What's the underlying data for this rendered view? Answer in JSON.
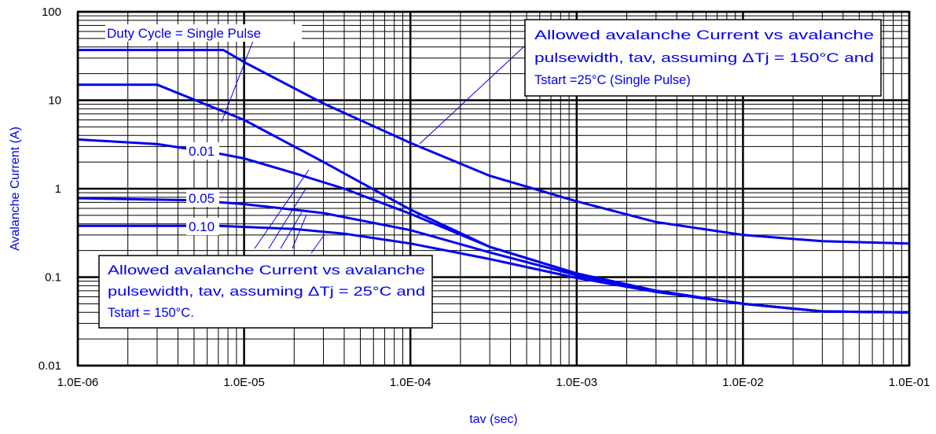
{
  "chart_data": {
    "type": "line",
    "xlabel": "tav (sec)",
    "ylabel": "Avalanche Current (A)",
    "x_scale": "log",
    "y_scale": "log",
    "xlim": [
      1e-06,
      0.1
    ],
    "ylim": [
      0.01,
      100
    ],
    "grid": true,
    "x_tick_labels": [
      "1.0E-06",
      "1.0E-05",
      "1.0E-04",
      "1.0E-03",
      "1.0E-02",
      "1.0E-01"
    ],
    "y_tick_labels": [
      "0.01",
      "0.1",
      "1",
      "10",
      "100"
    ],
    "series": [
      {
        "name": "",
        "color": "#0000ee",
        "points": [
          [
            1e-06,
            37
          ],
          [
            7.5e-06,
            37
          ],
          [
            1e-05,
            27
          ],
          [
            3e-05,
            9.2
          ],
          [
            0.0001,
            3.3
          ],
          [
            0.0003,
            1.4
          ],
          [
            0.001,
            0.72
          ],
          [
            0.003,
            0.42
          ],
          [
            0.01,
            0.3
          ],
          [
            0.03,
            0.255
          ],
          [
            0.1,
            0.24
          ]
        ]
      },
      {
        "name": "",
        "color": "#0000ee",
        "points": [
          [
            1e-06,
            15
          ],
          [
            3e-06,
            15
          ],
          [
            1e-05,
            6
          ],
          [
            3e-05,
            2.0
          ],
          [
            0.0001,
            0.58
          ],
          [
            0.0003,
            0.22
          ],
          [
            0.001,
            0.11
          ],
          [
            0.003,
            0.07
          ],
          [
            0.01,
            0.05
          ],
          [
            0.03,
            0.041
          ],
          [
            0.1,
            0.04
          ]
        ]
      },
      {
        "name": "0.01",
        "color": "#0000ee",
        "points": [
          [
            1e-06,
            3.6
          ],
          [
            3e-06,
            3.2
          ],
          [
            7e-06,
            2.5
          ],
          [
            1e-05,
            2.2
          ],
          [
            2e-05,
            1.5
          ],
          [
            4e-05,
            1.0
          ],
          [
            0.0001,
            0.52
          ],
          [
            0.0003,
            0.22
          ],
          [
            0.001,
            0.11
          ],
          [
            0.003,
            0.07
          ],
          [
            0.01,
            0.05
          ],
          [
            0.03,
            0.041
          ],
          [
            0.1,
            0.04
          ]
        ]
      },
      {
        "name": "0.05",
        "color": "#0000ee",
        "points": [
          [
            1e-06,
            0.78
          ],
          [
            5e-06,
            0.74
          ],
          [
            1e-05,
            0.67
          ],
          [
            3e-05,
            0.53
          ],
          [
            0.0001,
            0.34
          ],
          [
            0.0003,
            0.19
          ],
          [
            0.001,
            0.105
          ],
          [
            0.003,
            0.07
          ],
          [
            0.01,
            0.05
          ],
          [
            0.03,
            0.041
          ],
          [
            0.1,
            0.04
          ]
        ]
      },
      {
        "name": "0.10",
        "color": "#0000ee",
        "points": [
          [
            1e-06,
            0.38
          ],
          [
            7e-06,
            0.38
          ],
          [
            2e-05,
            0.35
          ],
          [
            4e-05,
            0.31
          ],
          [
            0.0001,
            0.24
          ],
          [
            0.0003,
            0.16
          ],
          [
            0.001,
            0.098
          ],
          [
            0.003,
            0.068
          ],
          [
            0.01,
            0.05
          ],
          [
            0.03,
            0.041
          ],
          [
            0.1,
            0.04
          ]
        ]
      }
    ],
    "annotations": {
      "duty_cycle": "Duty Cycle = Single Pulse",
      "upper_box": [
        "Allowed avalanche Current vs avalanche",
        "pulsewidth, tav, assuming ΔTj = 150°C and",
        "Tstart =25°C (Single Pulse)"
      ],
      "lower_box": [
        "Allowed avalanche Current vs avalanche",
        "pulsewidth, tav, assuming ΔTj = 25°C and",
        "Tstart = 150°C."
      ]
    }
  }
}
